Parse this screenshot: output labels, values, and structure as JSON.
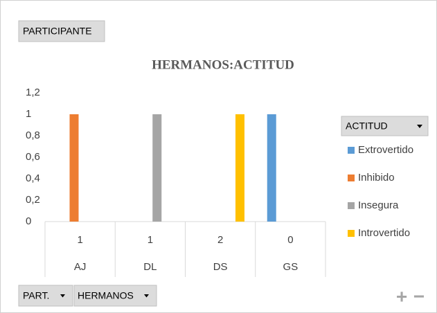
{
  "chart_data": {
    "type": "bar",
    "title": "HERMANOS:ACTITUD",
    "categories": [
      "AJ",
      "DL",
      "DS",
      "GS"
    ],
    "subcategories": [
      "1",
      "1",
      "2",
      "0"
    ],
    "series": [
      {
        "name": "Extrovertido",
        "color": "#5b9bd5",
        "values": [
          null,
          null,
          null,
          1
        ]
      },
      {
        "name": "Inhibido",
        "color": "#ed7d31",
        "values": [
          1,
          null,
          null,
          null
        ]
      },
      {
        "name": "Insegura",
        "color": "#a5a5a5",
        "values": [
          null,
          1,
          null,
          null
        ]
      },
      {
        "name": "Introvertido",
        "color": "#ffc000",
        "values": [
          null,
          null,
          1,
          null
        ]
      }
    ],
    "ylim": [
      0,
      1.2
    ],
    "yticks": [
      0,
      {
        "value": 0.2,
        "label": "0,2"
      },
      {
        "value": 0.4,
        "label": "0,4"
      },
      {
        "value": 0.6,
        "label": "0,6"
      },
      {
        "value": 0.8,
        "label": "0,8"
      },
      1,
      {
        "value": 1.2,
        "label": "1,2"
      }
    ],
    "grid": false,
    "legend_title": "ACTITUD",
    "legend": "right"
  },
  "ui": {
    "report_filter": "PARTICIPANTE",
    "axis_fields": [
      "PART.",
      "HERMANOS"
    ],
    "plus": "+",
    "minus": "−"
  }
}
